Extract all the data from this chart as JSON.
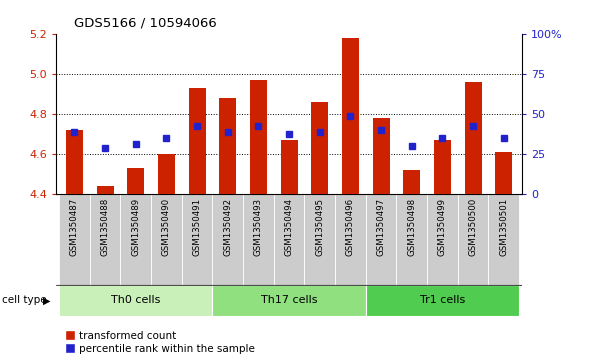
{
  "title": "GDS5166 / 10594066",
  "samples": [
    "GSM1350487",
    "GSM1350488",
    "GSM1350489",
    "GSM1350490",
    "GSM1350491",
    "GSM1350492",
    "GSM1350493",
    "GSM1350494",
    "GSM1350495",
    "GSM1350496",
    "GSM1350497",
    "GSM1350498",
    "GSM1350499",
    "GSM1350500",
    "GSM1350501"
  ],
  "bar_values": [
    4.72,
    4.44,
    4.53,
    4.6,
    4.93,
    4.88,
    4.97,
    4.67,
    4.86,
    5.18,
    4.78,
    4.52,
    4.67,
    4.96,
    4.61
  ],
  "dot_values": [
    4.71,
    4.63,
    4.65,
    4.68,
    4.74,
    4.71,
    4.74,
    4.7,
    4.71,
    4.79,
    4.72,
    4.64,
    4.68,
    4.74,
    4.68
  ],
  "cell_groups": [
    {
      "label": "Th0 cells",
      "start": 0,
      "end": 4,
      "color": "#c8f0b8"
    },
    {
      "label": "Th17 cells",
      "start": 5,
      "end": 9,
      "color": "#90e080"
    },
    {
      "label": "Tr1 cells",
      "start": 10,
      "end": 14,
      "color": "#50cc50"
    }
  ],
  "ylim": [
    4.4,
    5.2
  ],
  "yticks_left": [
    4.4,
    4.6,
    4.8,
    5.0,
    5.2
  ],
  "yticks_right_pct": [
    0,
    25,
    50,
    75,
    100
  ],
  "yticks_right_labels": [
    "0",
    "25",
    "50",
    "75",
    "100%"
  ],
  "grid_lines": [
    4.6,
    4.8,
    5.0
  ],
  "bar_color": "#cc2200",
  "dot_color": "#2222cc",
  "bar_baseline": 4.4,
  "sample_bg": "#cccccc",
  "legend_tc": "transformed count",
  "legend_pr": "percentile rank within the sample"
}
